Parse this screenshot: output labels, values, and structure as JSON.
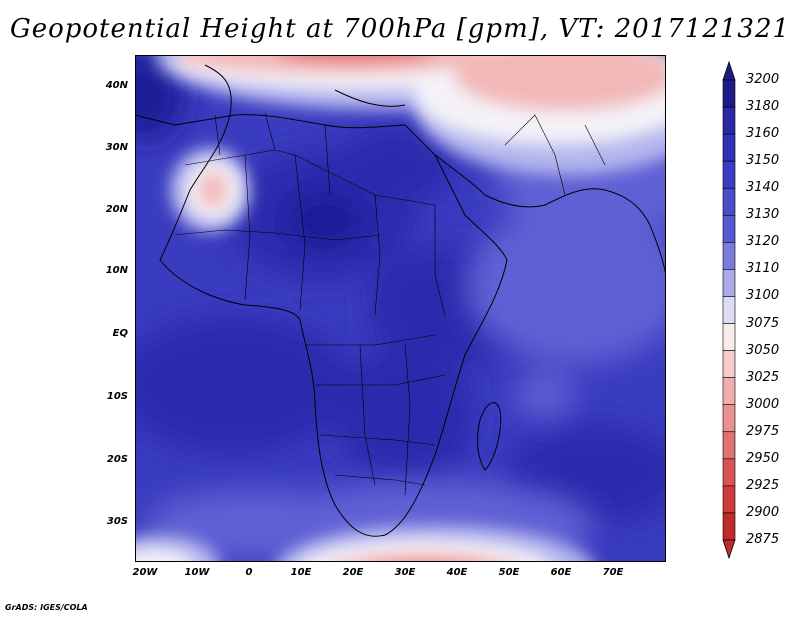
{
  "title": "Geopotential Height at 700hPa [gpm], VT: 2017121321",
  "credit": "GrADS: IGES/COLA",
  "map": {
    "lat_labels": [
      "40N",
      "30N",
      "20N",
      "10N",
      "EQ",
      "10S",
      "20S",
      "30S"
    ],
    "lon_labels": [
      "20W",
      "10W",
      "0",
      "10E",
      "20E",
      "30E",
      "40E",
      "50E",
      "60E",
      "70E"
    ],
    "field_colors": {
      "deep": "#1e1a98",
      "dark": "#2c2cae",
      "mid": "#3a3cc0",
      "light": "#5e60d4",
      "pale": "#b4b6ee",
      "white": "#f4f2f8",
      "pink": "#f2b8b8",
      "red": "#e07070",
      "deepred": "#c83030"
    }
  },
  "colorbar": {
    "levels": [
      "3200",
      "3180",
      "3160",
      "3150",
      "3140",
      "3130",
      "3120",
      "3110",
      "3100",
      "3075",
      "3050",
      "3025",
      "3000",
      "2975",
      "2950",
      "2925",
      "2900",
      "2875"
    ],
    "colors": [
      "#1e1a88",
      "#2a28a4",
      "#3232b8",
      "#3c3cc4",
      "#4a4ccc",
      "#5858d4",
      "#7a7cdc",
      "#aaaae8",
      "#dcdcf4",
      "#fbecec",
      "#f7cccc",
      "#f0aeae",
      "#e99090",
      "#e17272",
      "#d85454",
      "#cf3a3a",
      "#c02a2a"
    ]
  }
}
